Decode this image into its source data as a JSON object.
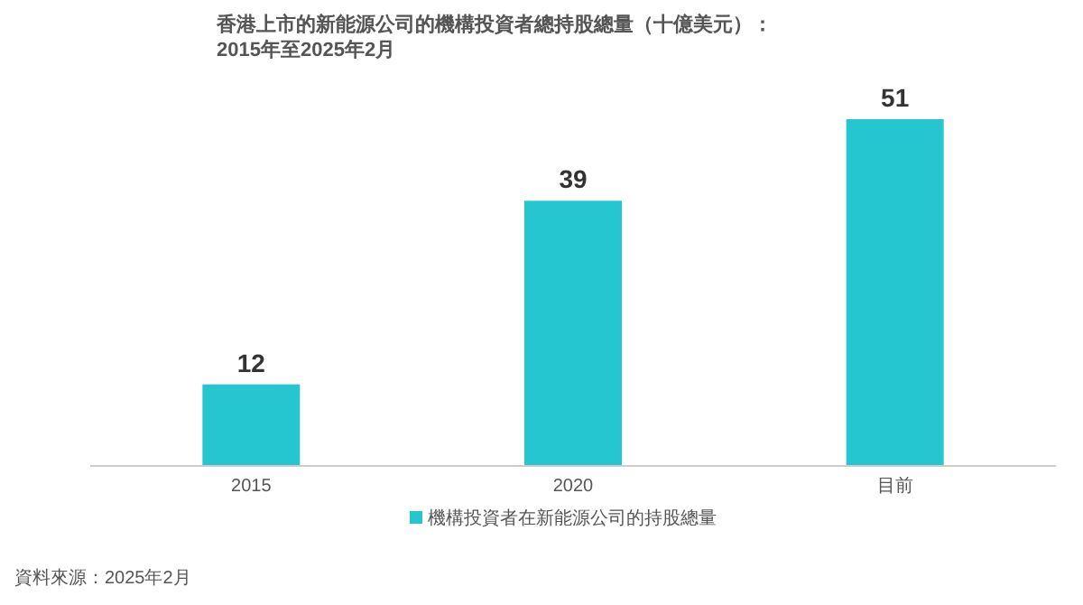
{
  "chart_data": {
    "type": "bar",
    "title": "香港上市的新能源公司的機構投資者總持股總量（十億美元）：",
    "subtitle": "2015年至2025年2月",
    "categories": [
      "2015",
      "2020",
      "目前"
    ],
    "series": [
      {
        "name": "機構投資者在新能源公司的持股總量",
        "color": "#26c6d0",
        "values": [
          12,
          39,
          51
        ]
      }
    ],
    "data_labels": true,
    "legend": "bottom",
    "annotations": [
      "資料來源：2025年2月"
    ]
  }
}
